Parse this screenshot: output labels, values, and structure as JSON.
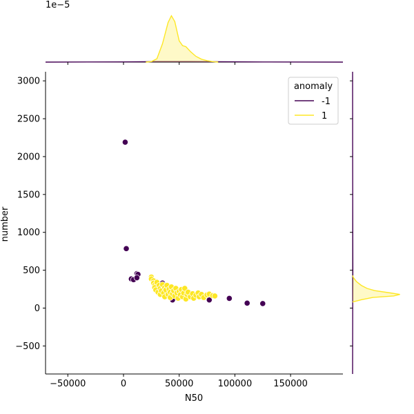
{
  "chart_data": {
    "type": "scatter",
    "xlabel": "N50",
    "ylabel": "number",
    "xlim": [
      -70000,
      197000
    ],
    "ylim": [
      -870,
      3120
    ],
    "x_ticks": [
      -50000,
      0,
      50000,
      100000,
      150000
    ],
    "x_tick_labels": [
      "−50000",
      "0",
      "50000",
      "100000",
      "150000"
    ],
    "y_ticks": [
      -500,
      0,
      500,
      1000,
      1500,
      2000,
      2500,
      3000
    ],
    "y_tick_labels": [
      "−500",
      "0",
      "500",
      "1000",
      "1500",
      "2000",
      "2500",
      "3000"
    ],
    "top_marginal_offset_label": "1e−5",
    "legend": {
      "title": "anomaly",
      "placement": "top-right",
      "entries": [
        {
          "label": "-1",
          "color": "#440154"
        },
        {
          "label": "1",
          "color": "#fde725"
        }
      ]
    },
    "series": [
      {
        "name": "-1",
        "color": "#440154",
        "points": [
          {
            "x": 1500,
            "y": 2190
          },
          {
            "x": 2500,
            "y": 785
          },
          {
            "x": 7000,
            "y": 385
          },
          {
            "x": 9000,
            "y": 375
          },
          {
            "x": 12000,
            "y": 455
          },
          {
            "x": 13000,
            "y": 445
          },
          {
            "x": 12000,
            "y": 400
          },
          {
            "x": 30000,
            "y": 345
          },
          {
            "x": 35000,
            "y": 330
          },
          {
            "x": 44000,
            "y": 108
          },
          {
            "x": 77000,
            "y": 108
          },
          {
            "x": 95000,
            "y": 128
          },
          {
            "x": 111000,
            "y": 65
          },
          {
            "x": 125000,
            "y": 60
          }
        ]
      },
      {
        "name": "1",
        "color": "#fde725",
        "points": [
          {
            "x": 25000,
            "y": 410
          },
          {
            "x": 25000,
            "y": 385
          },
          {
            "x": 27000,
            "y": 360
          },
          {
            "x": 27000,
            "y": 330
          },
          {
            "x": 28000,
            "y": 300
          },
          {
            "x": 28000,
            "y": 270
          },
          {
            "x": 29000,
            "y": 240
          },
          {
            "x": 30000,
            "y": 340
          },
          {
            "x": 31000,
            "y": 210
          },
          {
            "x": 32000,
            "y": 300
          },
          {
            "x": 33000,
            "y": 260
          },
          {
            "x": 33000,
            "y": 180
          },
          {
            "x": 34000,
            "y": 230
          },
          {
            "x": 35000,
            "y": 310
          },
          {
            "x": 36000,
            "y": 200
          },
          {
            "x": 37000,
            "y": 270
          },
          {
            "x": 37000,
            "y": 150
          },
          {
            "x": 38000,
            "y": 240
          },
          {
            "x": 39000,
            "y": 300
          },
          {
            "x": 40000,
            "y": 180
          },
          {
            "x": 41000,
            "y": 250
          },
          {
            "x": 42000,
            "y": 210
          },
          {
            "x": 42000,
            "y": 140
          },
          {
            "x": 43000,
            "y": 280
          },
          {
            "x": 44000,
            "y": 190
          },
          {
            "x": 45000,
            "y": 230
          },
          {
            "x": 46000,
            "y": 160
          },
          {
            "x": 47000,
            "y": 260
          },
          {
            "x": 48000,
            "y": 200
          },
          {
            "x": 49000,
            "y": 130
          },
          {
            "x": 50000,
            "y": 220
          },
          {
            "x": 51000,
            "y": 175
          },
          {
            "x": 52000,
            "y": 245
          },
          {
            "x": 53000,
            "y": 150
          },
          {
            "x": 54000,
            "y": 200
          },
          {
            "x": 55000,
            "y": 260
          },
          {
            "x": 56000,
            "y": 120
          },
          {
            "x": 57000,
            "y": 180
          },
          {
            "x": 58000,
            "y": 210
          },
          {
            "x": 60000,
            "y": 150
          },
          {
            "x": 62000,
            "y": 190
          },
          {
            "x": 63000,
            "y": 130
          },
          {
            "x": 65000,
            "y": 170
          },
          {
            "x": 67000,
            "y": 200
          },
          {
            "x": 68000,
            "y": 150
          },
          {
            "x": 70000,
            "y": 180
          },
          {
            "x": 72000,
            "y": 140
          },
          {
            "x": 75000,
            "y": 175
          },
          {
            "x": 77000,
            "y": 185
          },
          {
            "x": 80000,
            "y": 165
          },
          {
            "x": 82000,
            "y": 160
          }
        ]
      }
    ],
    "x_density": [
      {
        "name": "-1",
        "color": "#440154",
        "x": [
          -70000,
          0,
          30000,
          60000,
          100000,
          130000,
          197000
        ],
        "density": [
          0.0,
          0.004,
          0.01,
          0.01,
          0.006,
          0.003,
          0.0
        ]
      },
      {
        "name": "1",
        "color": "#fde725",
        "x": [
          20000,
          25000,
          30000,
          35000,
          40000,
          43000,
          46000,
          50000,
          53000,
          56000,
          60000,
          65000,
          70000,
          75000,
          80000,
          85000
        ],
        "density": [
          0.0,
          0.01,
          0.07,
          0.38,
          0.82,
          0.96,
          0.84,
          0.44,
          0.34,
          0.32,
          0.22,
          0.12,
          0.06,
          0.03,
          0.01,
          0.0
        ]
      }
    ],
    "y_density": [
      {
        "name": "-1",
        "color": "#440154",
        "y": [
          -870,
          0,
          500,
          1000,
          2000,
          3120
        ],
        "density": [
          0.0,
          0.003,
          0.006,
          0.004,
          0.002,
          0.0
        ]
      },
      {
        "name": "1",
        "color": "#fde725",
        "y": [
          80,
          110,
          140,
          160,
          180,
          200,
          230,
          260,
          300,
          350,
          400,
          430
        ],
        "density": [
          0.0,
          0.18,
          0.42,
          0.85,
          0.98,
          0.78,
          0.46,
          0.3,
          0.18,
          0.08,
          0.02,
          0.0
        ]
      }
    ]
  }
}
